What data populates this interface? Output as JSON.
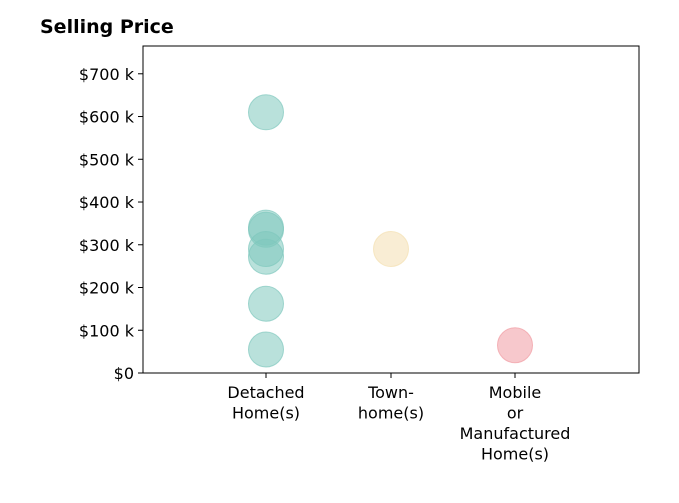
{
  "chart_data": {
    "type": "scatter",
    "title": "Selling Price",
    "xlabel": "",
    "ylabel": "",
    "categories": [
      [
        "Detached",
        "Home(s)"
      ],
      [
        "Town-",
        "home(s)"
      ],
      [
        "Mobile",
        "or",
        "Manufactured",
        "Home(s)"
      ]
    ],
    "ylim": [
      0,
      765000
    ],
    "y_ticks": [
      {
        "value": 0,
        "label": "$0"
      },
      {
        "value": 100000,
        "label": "$100 k"
      },
      {
        "value": 200000,
        "label": "$200 k"
      },
      {
        "value": 300000,
        "label": "$300 k"
      },
      {
        "value": 400000,
        "label": "$400 k"
      },
      {
        "value": 500000,
        "label": "$500 k"
      },
      {
        "value": 600000,
        "label": "$600 k"
      },
      {
        "value": 700000,
        "label": "$700 k"
      }
    ],
    "grid": false,
    "series": [
      {
        "category": 0,
        "color": "#7fc8bd",
        "values": [
          610000,
          340000,
          335000,
          290000,
          272000,
          162000,
          55000
        ]
      },
      {
        "category": 1,
        "color": "#f4dfb0",
        "values": [
          290000
        ]
      },
      {
        "category": 2,
        "color": "#f19ba3",
        "values": [
          65000
        ]
      }
    ]
  }
}
